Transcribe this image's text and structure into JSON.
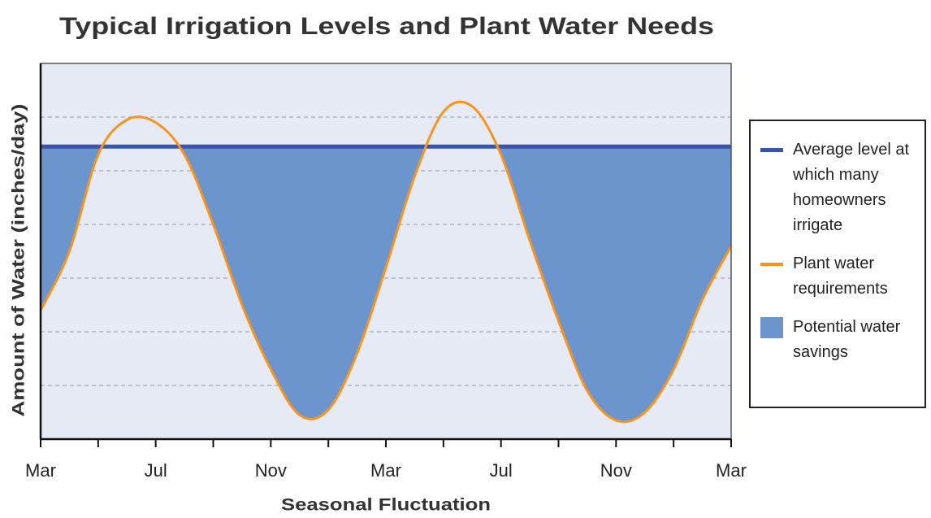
{
  "chart_data": {
    "type": "line",
    "title": "Typical Irrigation Levels and Plant Water Needs",
    "x_label": "Seasonal Fluctuation",
    "y_label": "Amount of Water (inches/day)",
    "categories": [
      "Mar",
      null,
      null,
      null,
      "Jul",
      null,
      null,
      null,
      "Nov",
      null,
      null,
      null,
      "Mar",
      null,
      null,
      null,
      "Jul",
      null,
      null,
      null,
      "Nov",
      null,
      null,
      null,
      "Mar"
    ],
    "series": [
      {
        "name": "Average level at which many homeowners irrigate",
        "color": "#3a55a4",
        "values": [
          5.45,
          5.45,
          5.45,
          5.45,
          5.45,
          5.45,
          5.45,
          5.45,
          5.45,
          5.45,
          5.45,
          5.45,
          5.45,
          5.45,
          5.45,
          5.45,
          5.45,
          5.45,
          5.45,
          5.45,
          5.45,
          5.45,
          5.45,
          5.45,
          5.45
        ]
      },
      {
        "name": "Plant water requirements",
        "color": "#f7941d",
        "values": [
          2.4,
          3.5,
          5.3,
          5.95,
          5.9,
          5.3,
          4.0,
          2.5,
          1.3,
          0.45,
          0.55,
          1.6,
          3.2,
          4.9,
          6.1,
          6.2,
          5.3,
          3.7,
          2.2,
          0.9,
          0.35,
          0.5,
          1.3,
          2.6,
          3.6
        ]
      }
    ],
    "fill": {
      "name": "Potential water savings",
      "color": "#6b95cc"
    },
    "ylim": [
      0,
      7
    ],
    "yticks": [
      1,
      2,
      3,
      4,
      5,
      6
    ],
    "grid": true,
    "background": "#e6eaf5"
  }
}
